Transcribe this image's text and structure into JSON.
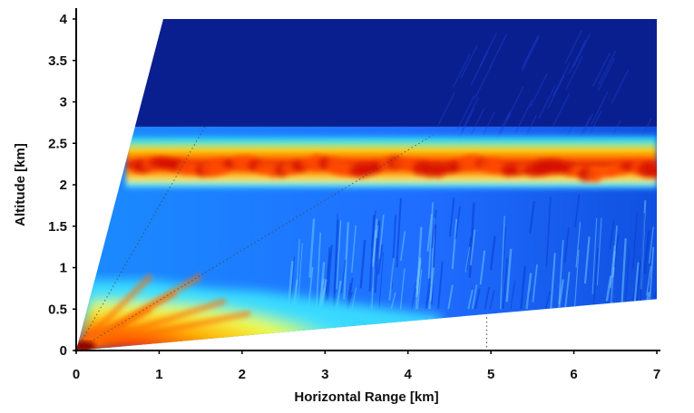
{
  "chart_data": {
    "type": "heatmap",
    "title": "",
    "xlabel": "Horizontal Range [km]",
    "ylabel": "Altitude [km]",
    "xlim": [
      0,
      7
    ],
    "ylim": [
      0,
      4
    ],
    "xticks": [
      "0",
      "1",
      "2",
      "3",
      "4",
      "5",
      "6",
      "7"
    ],
    "yticks": [
      "0",
      "0.5",
      "1",
      "1.5",
      "2",
      "2.5",
      "3",
      "3.5",
      "4"
    ],
    "grid": false,
    "colormap": "jet",
    "scan_sector": [
      [
        0,
        0
      ],
      [
        1.05,
        4
      ],
      [
        7,
        4
      ],
      [
        7,
        0.62
      ]
    ],
    "features": [
      {
        "name": "elevated layer",
        "x_range": [
          0.6,
          7
        ],
        "altitude_center": 2.22,
        "altitude_range": [
          1.95,
          2.6
        ],
        "intensity": "high"
      },
      {
        "name": "near-surface layer",
        "x_range": [
          0,
          4.4
        ],
        "altitude_range": [
          0,
          0.9
        ],
        "intensity": "high"
      }
    ],
    "colors": {
      "background": "#0a1f8f",
      "low": "#0055e6",
      "mid": "#00e5ff",
      "high_mid": "#ffe000",
      "high": "#e41a00"
    }
  }
}
